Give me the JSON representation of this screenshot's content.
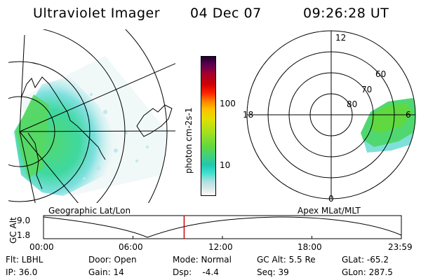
{
  "header": {
    "instrument": "Ultraviolet Imager",
    "date": "04 Dec 07",
    "time": "09:26:28 UT"
  },
  "colorbar": {
    "unit_label": "photon cm-2s-1",
    "ticks": [
      "100",
      "10"
    ],
    "colors": [
      "#ffffff",
      "#d8e8e8",
      "#b0e0e0",
      "#40e0d0",
      "#20c8b0",
      "#40d080",
      "#60d840",
      "#a0e020",
      "#e0e000",
      "#ffc000",
      "#ff8000",
      "#ff2000",
      "#d00000",
      "#a00030",
      "#600050",
      "#200030"
    ]
  },
  "left_panel": {
    "label": "Geographic Lat/Lon"
  },
  "right_panel": {
    "label": "Apex MLat/MLT",
    "mlt_labels": {
      "top": "12",
      "left": "18",
      "right": "6",
      "bottom": "0"
    },
    "lat_labels": [
      "60",
      "70",
      "80"
    ]
  },
  "altitude_plot": {
    "axis_title": "GC Alt",
    "y_ticks": [
      "9.0",
      "1.8"
    ],
    "x_ticks": [
      "00:00",
      "06:00",
      "12:00",
      "18:00",
      "23:59"
    ],
    "current_time_fraction": 0.393,
    "marker_color": "#cc0000"
  },
  "status": {
    "filter": "Flt: LBHL",
    "ip": "IP: 36.0",
    "door": "Door: Open",
    "gain": "Gain: 14",
    "mode": "Mode: Normal",
    "dsp": "Dsp:    -4.4",
    "gc_alt": "GC Alt: 5.5 Re",
    "seq": "Seq: 39",
    "glat": "GLat: -65.2",
    "glon": "GLon: 287.5"
  }
}
